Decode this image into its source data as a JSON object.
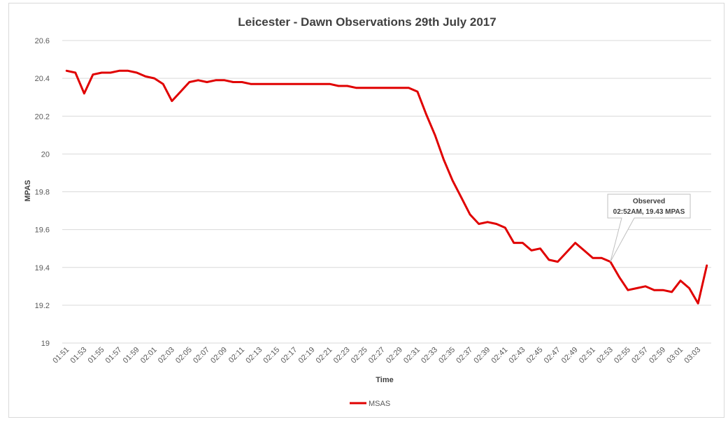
{
  "chart_data": {
    "type": "line",
    "title": "Leicester - Dawn Observations 29th July 2017",
    "xlabel": "Time",
    "ylabel": "MPAS",
    "ylim": [
      19,
      20.6
    ],
    "yticks": [
      "19",
      "19.2",
      "19.4",
      "19.6",
      "19.8",
      "20",
      "20.2",
      "20.4",
      "20.6"
    ],
    "xtick_labels": [
      "01:51",
      "01:53",
      "01:55",
      "01:57",
      "01:59",
      "02:01",
      "02:03",
      "02:05",
      "02:07",
      "02:09",
      "02:11",
      "02:13",
      "02:15",
      "02:17",
      "02:19",
      "02:21",
      "02:23",
      "02:25",
      "02:27",
      "02:29",
      "02:31",
      "02:33",
      "02:35",
      "02:37",
      "02:39",
      "02:41",
      "02:43",
      "02:45",
      "02:47",
      "02:49",
      "02:51",
      "02:53",
      "02:55",
      "02:57",
      "02:59",
      "03:01",
      "03:03"
    ],
    "grid": true,
    "legend_position": "bottom",
    "series": [
      {
        "name": "MSAS",
        "color": "#e00000",
        "values": [
          20.44,
          20.43,
          20.32,
          20.42,
          20.43,
          20.43,
          20.44,
          20.44,
          20.43,
          20.41,
          20.4,
          20.37,
          20.28,
          20.33,
          20.38,
          20.39,
          20.38,
          20.39,
          20.39,
          20.38,
          20.38,
          20.37,
          20.37,
          20.37,
          20.37,
          20.37,
          20.37,
          20.37,
          20.37,
          20.37,
          20.37,
          20.36,
          20.36,
          20.35,
          20.35,
          20.35,
          20.35,
          20.35,
          20.35,
          20.35,
          20.33,
          20.21,
          20.1,
          19.97,
          19.86,
          19.77,
          19.68,
          19.63,
          19.64,
          19.63,
          19.61,
          19.53,
          19.53,
          19.49,
          19.5,
          19.44,
          19.43,
          19.48,
          19.53,
          19.49,
          19.45,
          19.45,
          19.43,
          19.35,
          19.28,
          19.29,
          19.3,
          19.28,
          19.28,
          19.27,
          19.33,
          19.29,
          19.21,
          19.41
        ]
      }
    ],
    "annotation": {
      "index": 62,
      "line1": "Observed",
      "line2": "02:52AM, 19.43 MPAS"
    }
  }
}
